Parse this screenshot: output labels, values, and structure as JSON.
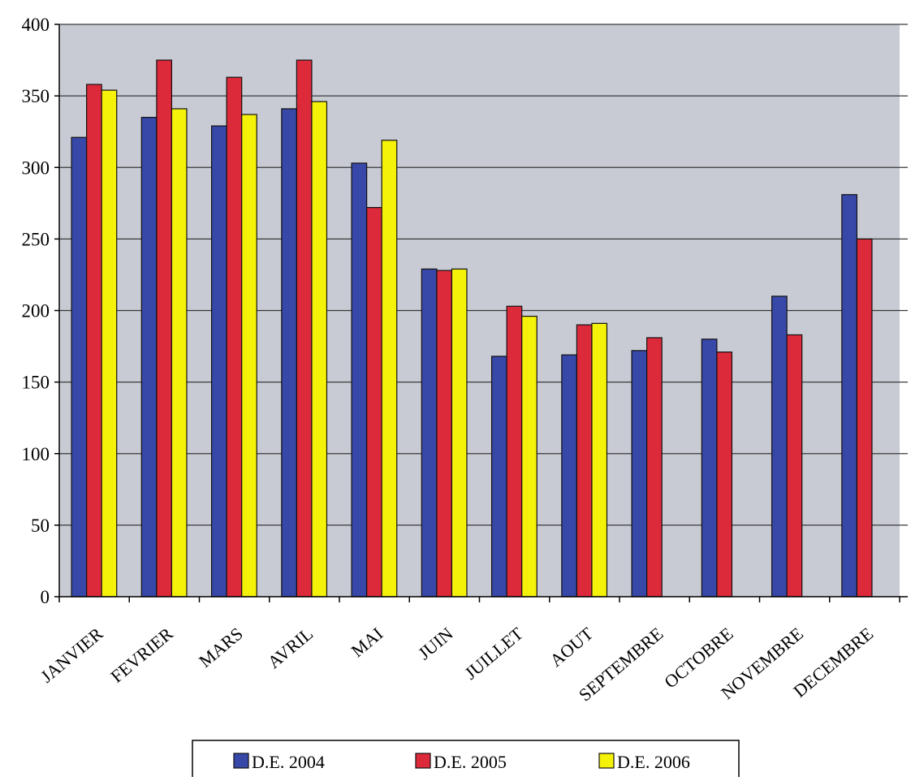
{
  "chart_data": {
    "type": "bar",
    "categories": [
      "JANVIER",
      "FEVRIER",
      "MARS",
      "AVRIL",
      "MAI",
      "JUIN",
      "JUILLET",
      "AOUT",
      "SEPTEMBRE",
      "OCTOBRE",
      "NOVEMBRE",
      "DECEMBRE"
    ],
    "series": [
      {
        "name": "D.E. 2004",
        "color": "#3848a8",
        "values": [
          321,
          335,
          329,
          341,
          303,
          229,
          168,
          169,
          172,
          180,
          210,
          281
        ]
      },
      {
        "name": "D.E. 2005",
        "color": "#dd2a3a",
        "values": [
          358,
          375,
          363,
          375,
          272,
          228,
          203,
          190,
          181,
          171,
          183,
          250
        ]
      },
      {
        "name": "D.E. 2006",
        "color": "#f5f20a",
        "values": [
          354,
          341,
          337,
          346,
          319,
          229,
          196,
          191,
          null,
          null,
          null,
          null
        ]
      }
    ],
    "yticks": [
      "0",
      "50",
      "100",
      "150",
      "200",
      "250",
      "300",
      "350",
      "400"
    ],
    "ylim": [
      0,
      400
    ],
    "grid": true,
    "legend_position": "bottom",
    "plot_background": "#c9cbd4",
    "title": "",
    "xlabel": "",
    "ylabel": ""
  }
}
